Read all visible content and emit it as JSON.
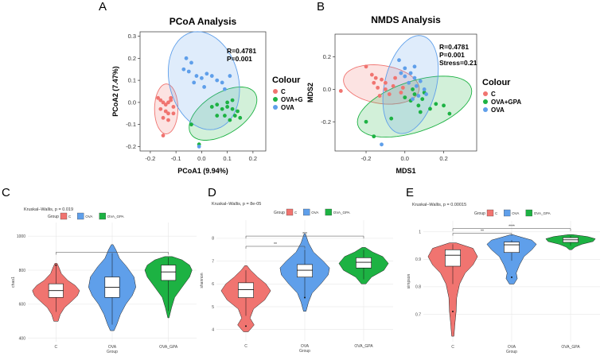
{
  "colors": {
    "C": "#F07470",
    "OVA_GPA": "#1DB243",
    "OVA": "#5F9FEA",
    "grid": "#E2E2E2"
  },
  "chart_data": [
    {
      "panel_label": "A",
      "type": "scatter",
      "title": "PCoA Analysis",
      "xlabel": "PCoA1 (9.94%)",
      "ylabel": "PCoA2 (7.47%)",
      "xlim": [
        -0.24,
        0.25
      ],
      "ylim": [
        -0.22,
        0.32
      ],
      "xticks": [
        "-0.2",
        "-0.1",
        "0.0",
        "0.1",
        "0.2"
      ],
      "yticks": [
        "-0.2",
        "-0.1",
        "0.0",
        "0.1",
        "0.2",
        "0.3"
      ],
      "stats": [
        "R=0.4781",
        "P=0.001"
      ],
      "legend_title": "Colour",
      "legend": [
        "C",
        "OVA+GPA",
        "OVA"
      ],
      "series": [
        {
          "name": "C",
          "points": [
            [
              -0.17,
              0.02
            ],
            [
              -0.16,
              0.01
            ],
            [
              -0.15,
              0.0
            ],
            [
              -0.14,
              -0.01
            ],
            [
              -0.13,
              0.0
            ],
            [
              -0.12,
              0.02
            ],
            [
              -0.16,
              -0.03
            ],
            [
              -0.14,
              -0.04
            ],
            [
              -0.13,
              -0.05
            ],
            [
              -0.11,
              -0.05
            ],
            [
              -0.15,
              -0.07
            ],
            [
              -0.13,
              -0.08
            ],
            [
              -0.12,
              0.01
            ],
            [
              -0.11,
              -0.02
            ],
            [
              -0.15,
              -0.15
            ]
          ]
        },
        {
          "name": "OVA+GPA",
          "points": [
            [
              0.04,
              -0.02
            ],
            [
              0.06,
              -0.01
            ],
            [
              0.08,
              -0.03
            ],
            [
              0.1,
              -0.02
            ],
            [
              0.12,
              -0.03
            ],
            [
              0.14,
              -0.04
            ],
            [
              0.1,
              0.0
            ],
            [
              0.12,
              0.01
            ],
            [
              0.09,
              -0.06
            ],
            [
              0.13,
              -0.06
            ],
            [
              0.15,
              -0.07
            ],
            [
              0.11,
              -0.08
            ],
            [
              -0.04,
              -0.1
            ],
            [
              0.06,
              -0.06
            ],
            [
              -0.01,
              -0.19
            ]
          ]
        },
        {
          "name": "OVA",
          "points": [
            [
              -0.06,
              0.2
            ],
            [
              -0.04,
              0.18
            ],
            [
              -0.07,
              0.15
            ],
            [
              -0.05,
              0.14
            ],
            [
              -0.02,
              0.12
            ],
            [
              0.0,
              0.11
            ],
            [
              0.02,
              0.13
            ],
            [
              0.04,
              0.12
            ],
            [
              0.06,
              0.1
            ],
            [
              0.08,
              0.09
            ],
            [
              0.11,
              0.12
            ],
            [
              -0.03,
              0.09
            ],
            [
              0.01,
              0.07
            ],
            [
              0.09,
              0.06
            ],
            [
              -0.01,
              -0.2
            ]
          ]
        }
      ]
    },
    {
      "panel_label": "B",
      "type": "scatter",
      "title": "NMDS Analysis",
      "xlabel": "MDS1",
      "ylabel": "MDS2",
      "xlim": [
        -0.36,
        0.37
      ],
      "ylim": [
        -0.38,
        0.34
      ],
      "xticks": [
        "-0.2",
        "0.0",
        "0.2"
      ],
      "yticks": [
        "-0.2",
        "0.0",
        "0.2"
      ],
      "stats": [
        "R=0.4781",
        "P=0.001",
        "Stress=0.21"
      ],
      "legend_title": "Colour",
      "legend": [
        "C",
        "OVA+GPA",
        "OVA"
      ],
      "series": [
        {
          "name": "C",
          "points": [
            [
              -0.33,
              -0.01
            ],
            [
              -0.2,
              0.14
            ],
            [
              -0.17,
              0.09
            ],
            [
              -0.15,
              0.07
            ],
            [
              -0.16,
              0.04
            ],
            [
              -0.12,
              0.06
            ],
            [
              -0.1,
              0.04
            ],
            [
              -0.14,
              0.01
            ],
            [
              -0.1,
              0.0
            ],
            [
              -0.08,
              -0.03
            ],
            [
              -0.13,
              -0.04
            ],
            [
              -0.06,
              0.02
            ],
            [
              -0.05,
              0.07
            ],
            [
              -0.02,
              -0.02
            ],
            [
              -0.01,
              0.01
            ]
          ]
        },
        {
          "name": "OVA+GPA",
          "points": [
            [
              0.0,
              -0.05
            ],
            [
              0.03,
              -0.07
            ],
            [
              0.05,
              -0.03
            ],
            [
              0.07,
              -0.1
            ],
            [
              0.09,
              -0.06
            ],
            [
              0.1,
              -0.02
            ],
            [
              0.13,
              -0.12
            ],
            [
              0.16,
              -0.09
            ],
            [
              0.08,
              -0.14
            ],
            [
              0.2,
              -0.1
            ],
            [
              0.23,
              -0.15
            ],
            [
              -0.07,
              -0.18
            ],
            [
              -0.16,
              -0.29
            ],
            [
              -0.2,
              -0.2
            ],
            [
              0.04,
              0.0
            ]
          ]
        },
        {
          "name": "OVA",
          "points": [
            [
              -0.03,
              0.18
            ],
            [
              0.0,
              0.13
            ],
            [
              0.03,
              0.1
            ],
            [
              0.05,
              0.07
            ],
            [
              0.02,
              0.04
            ],
            [
              0.06,
              0.02
            ],
            [
              0.08,
              0.05
            ],
            [
              0.1,
              0.0
            ],
            [
              0.07,
              -0.04
            ],
            [
              0.04,
              -0.06
            ],
            [
              0.11,
              -0.03
            ],
            [
              0.0,
              0.08
            ],
            [
              -0.02,
              0.1
            ],
            [
              -0.12,
              -0.34
            ],
            [
              0.05,
              0.14
            ]
          ]
        }
      ]
    },
    {
      "panel_label": "C",
      "type": "violin",
      "title": "Kruskal–Wallis, p = 0.019",
      "legend_title": "Group",
      "legend": [
        "C",
        "OVA",
        "OVA_GPA"
      ],
      "categories": [
        "C",
        "OVA",
        "OVA_GPA"
      ],
      "xlabel": "Group",
      "ylabel": "chao1",
      "ylim": [
        380,
        1080
      ],
      "yticks": [
        400,
        600,
        800,
        1000
      ],
      "groups": [
        {
          "name": "C",
          "min": 500,
          "q1": 640,
          "median": 680,
          "q3": 720,
          "max": 840,
          "wlo": 555,
          "whi": 830,
          "outliers": [
            830
          ],
          "density": [
            [
              500,
              4
            ],
            [
              540,
              8
            ],
            [
              580,
              16
            ],
            [
              620,
              30
            ],
            [
              650,
              40
            ],
            [
              680,
              44
            ],
            [
              710,
              36
            ],
            [
              740,
              22
            ],
            [
              780,
              10
            ],
            [
              820,
              5
            ],
            [
              840,
              2
            ]
          ]
        },
        {
          "name": "OVA",
          "min": 445,
          "q1": 640,
          "median": 700,
          "q3": 760,
          "max": 950,
          "wlo": 480,
          "whi": 900,
          "outliers": [],
          "density": [
            [
              445,
              2
            ],
            [
              480,
              5
            ],
            [
              540,
              9
            ],
            [
              600,
              15
            ],
            [
              650,
              22
            ],
            [
              700,
              26
            ],
            [
              760,
              24
            ],
            [
              820,
              16
            ],
            [
              870,
              8
            ],
            [
              920,
              4
            ],
            [
              950,
              1
            ]
          ]
        },
        {
          "name": "OVA_GPA",
          "min": 520,
          "q1": 740,
          "median": 790,
          "q3": 830,
          "max": 880,
          "wlo": 560,
          "whi": 875,
          "outliers": [],
          "density": [
            [
              520,
              1
            ],
            [
              580,
              5
            ],
            [
              640,
              10
            ],
            [
              700,
              22
            ],
            [
              760,
              34
            ],
            [
              800,
              38
            ],
            [
              830,
              34
            ],
            [
              860,
              22
            ],
            [
              880,
              6
            ]
          ]
        }
      ],
      "brackets": [
        {
          "from": "C",
          "to": "OVA_GPA",
          "y": 905,
          "label": ""
        }
      ]
    },
    {
      "panel_label": "D",
      "type": "violin",
      "title": "Kruskal–Wallis, p = 8e-05",
      "legend_title": "Group",
      "legend": [
        "C",
        "OVA",
        "OVA_GPA"
      ],
      "categories": [
        "C",
        "OVA",
        "OVA_GPA"
      ],
      "xlabel": "Group",
      "ylabel": "shannon",
      "ylim": [
        3.5,
        8.8
      ],
      "yticks": [
        4,
        5,
        6,
        7,
        8
      ],
      "groups": [
        {
          "name": "C",
          "min": 3.9,
          "q1": 5.4,
          "median": 5.75,
          "q3": 6.05,
          "max": 6.8,
          "wlo": 4.6,
          "whi": 6.6,
          "outliers": [
            4.15
          ],
          "density": [
            [
              3.9,
              4
            ],
            [
              4.2,
              14
            ],
            [
              4.5,
              7
            ],
            [
              4.9,
              13
            ],
            [
              5.3,
              32
            ],
            [
              5.7,
              42
            ],
            [
              6.0,
              34
            ],
            [
              6.3,
              20
            ],
            [
              6.6,
              8
            ],
            [
              6.8,
              2
            ]
          ]
        },
        {
          "name": "OVA",
          "min": 4.8,
          "q1": 6.3,
          "median": 6.6,
          "q3": 6.85,
          "max": 8.2,
          "wlo": 5.4,
          "whi": 7.5,
          "outliers": [
            5.4
          ],
          "density": [
            [
              4.8,
              2
            ],
            [
              5.2,
              6
            ],
            [
              5.6,
              12
            ],
            [
              6.0,
              26
            ],
            [
              6.4,
              38
            ],
            [
              6.7,
              40
            ],
            [
              7.0,
              30
            ],
            [
              7.4,
              14
            ],
            [
              7.8,
              6
            ],
            [
              8.2,
              1
            ]
          ]
        },
        {
          "name": "OVA_GPA",
          "min": 6.0,
          "q1": 6.7,
          "median": 6.95,
          "q3": 7.15,
          "max": 7.6,
          "wlo": 6.2,
          "whi": 7.5,
          "outliers": [],
          "density": [
            [
              6.0,
              4
            ],
            [
              6.3,
              14
            ],
            [
              6.6,
              36
            ],
            [
              6.9,
              44
            ],
            [
              7.2,
              34
            ],
            [
              7.4,
              16
            ],
            [
              7.6,
              3
            ]
          ]
        }
      ],
      "brackets": [
        {
          "from": "C",
          "to": "OVA",
          "y": 7.65,
          "label": "**"
        },
        {
          "from": "C",
          "to": "OVA_GPA",
          "y": 8.1,
          "label": "***"
        }
      ]
    },
    {
      "panel_label": "E",
      "type": "violin",
      "title": "Kruskal–Wallis, p = 0.00015",
      "legend_title": "Group",
      "legend": [
        "C",
        "OVA",
        "OVA_GPA"
      ],
      "categories": [
        "C",
        "OVA",
        "OVA_GPA"
      ],
      "xlabel": "Group",
      "ylabel": "simpson",
      "ylim": [
        0.6,
        1.04
      ],
      "yticks": [
        0.7,
        0.8,
        0.9,
        1.0
      ],
      "groups": [
        {
          "name": "C",
          "min": 0.62,
          "q1": 0.875,
          "median": 0.915,
          "q3": 0.935,
          "max": 0.96,
          "wlo": 0.81,
          "whi": 0.955,
          "outliers": [
            0.71
          ],
          "density": [
            [
              0.62,
              2
            ],
            [
              0.67,
              4
            ],
            [
              0.71,
              6
            ],
            [
              0.76,
              7
            ],
            [
              0.81,
              12
            ],
            [
              0.85,
              22
            ],
            [
              0.88,
              36
            ],
            [
              0.91,
              44
            ],
            [
              0.94,
              36
            ],
            [
              0.96,
              6
            ]
          ]
        },
        {
          "name": "OVA",
          "min": 0.81,
          "q1": 0.925,
          "median": 0.953,
          "q3": 0.963,
          "max": 0.99,
          "wlo": 0.895,
          "whi": 0.97,
          "outliers": [
            0.835
          ],
          "density": [
            [
              0.81,
              4
            ],
            [
              0.83,
              10
            ],
            [
              0.85,
              8
            ],
            [
              0.88,
              14
            ],
            [
              0.91,
              22
            ],
            [
              0.935,
              36
            ],
            [
              0.955,
              44
            ],
            [
              0.97,
              36
            ],
            [
              0.985,
              10
            ],
            [
              0.99,
              2
            ]
          ]
        },
        {
          "name": "OVA_GPA",
          "min": 0.935,
          "q1": 0.962,
          "median": 0.971,
          "q3": 0.979,
          "max": 0.99,
          "wlo": 0.95,
          "whi": 0.985,
          "outliers": [],
          "density": [
            [
              0.935,
              2
            ],
            [
              0.945,
              8
            ],
            [
              0.955,
              20
            ],
            [
              0.965,
              40
            ],
            [
              0.975,
              44
            ],
            [
              0.983,
              30
            ],
            [
              0.99,
              4
            ]
          ]
        }
      ],
      "brackets": [
        {
          "from": "C",
          "to": "OVA",
          "y": 0.995,
          "label": "**"
        },
        {
          "from": "C",
          "to": "OVA_GPA",
          "y": 1.012,
          "label": "****"
        }
      ]
    }
  ]
}
